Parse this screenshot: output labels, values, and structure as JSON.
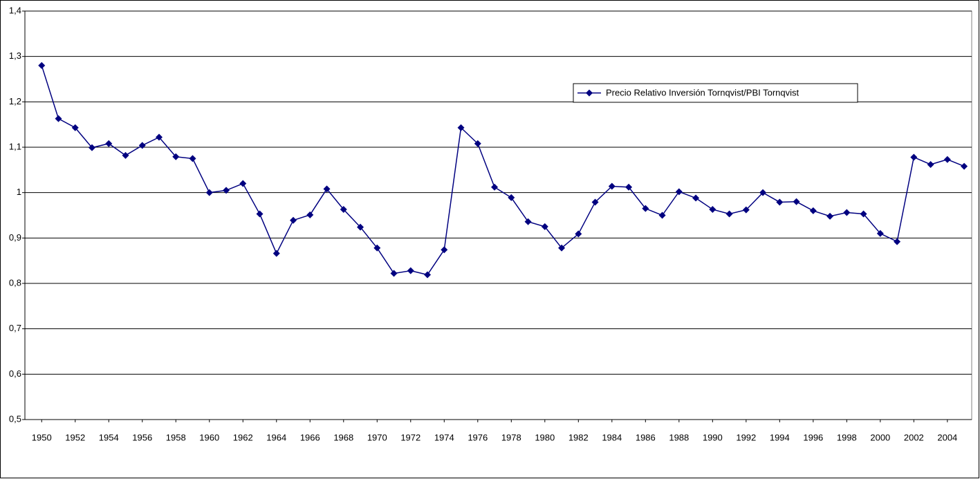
{
  "chart_data": {
    "type": "line",
    "x": [
      1950,
      1951,
      1952,
      1953,
      1954,
      1955,
      1956,
      1957,
      1958,
      1959,
      1960,
      1961,
      1962,
      1963,
      1964,
      1965,
      1966,
      1967,
      1968,
      1969,
      1970,
      1971,
      1972,
      1973,
      1974,
      1975,
      1976,
      1977,
      1978,
      1979,
      1980,
      1981,
      1982,
      1983,
      1984,
      1985,
      1986,
      1987,
      1988,
      1989,
      1990,
      1991,
      1992,
      1993,
      1994,
      1995,
      1996,
      1997,
      1998,
      1999,
      2000,
      2001,
      2002,
      2003,
      2004,
      2005
    ],
    "series": [
      {
        "name": "Precio Relativo Inversión Tornqvist/PBI Tornqvist",
        "color": "#000080",
        "values": [
          1.28,
          1.163,
          1.143,
          1.099,
          1.108,
          1.082,
          1.104,
          1.122,
          1.079,
          1.075,
          1.0,
          1.005,
          1.02,
          0.953,
          0.866,
          0.939,
          0.951,
          1.008,
          0.963,
          0.924,
          0.878,
          0.822,
          0.828,
          0.819,
          0.874,
          1.143,
          1.108,
          1.012,
          0.989,
          0.936,
          0.925,
          0.878,
          0.909,
          0.979,
          1.014,
          1.012,
          0.965,
          0.95,
          1.002,
          0.988,
          0.963,
          0.953,
          0.962,
          1.0,
          0.979,
          0.98,
          0.96,
          0.948,
          0.956,
          0.953,
          0.91,
          0.892,
          1.078,
          1.062,
          1.073,
          1.058
        ]
      }
    ],
    "xlim": [
      1949,
      2005.45
    ],
    "xticks": [
      1950,
      1952,
      1954,
      1956,
      1958,
      1960,
      1962,
      1964,
      1966,
      1968,
      1970,
      1972,
      1974,
      1976,
      1978,
      1980,
      1982,
      1984,
      1986,
      1988,
      1990,
      1992,
      1994,
      1996,
      1998,
      2000,
      2002,
      2004
    ],
    "ylim": [
      0.5,
      1.4
    ],
    "yticks": [
      {
        "value": 0.5,
        "label": "0,5"
      },
      {
        "value": 0.6,
        "label": "0,6"
      },
      {
        "value": 0.7,
        "label": "0,7"
      },
      {
        "value": 0.8,
        "label": "0,8"
      },
      {
        "value": 0.9,
        "label": "0,9"
      },
      1,
      {
        "value": 1.1,
        "label": "1,1"
      },
      {
        "value": 1.2,
        "label": "1,2"
      },
      {
        "value": 1.3,
        "label": "1,3"
      },
      {
        "value": 1.4,
        "label": "1,4"
      }
    ],
    "grid": true
  }
}
